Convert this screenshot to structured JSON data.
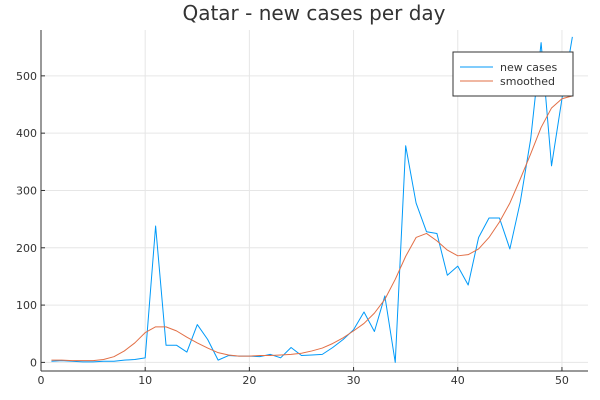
{
  "chart_data": {
    "type": "line",
    "title": "Qatar - new cases per day",
    "xlabel": "",
    "ylabel": "",
    "xlim": [
      0,
      52.5
    ],
    "ylim": [
      -15,
      580
    ],
    "xticks": [
      0,
      10,
      20,
      30,
      40,
      50
    ],
    "yticks": [
      0,
      100,
      200,
      300,
      400,
      500
    ],
    "grid": true,
    "legend_position": "top-right",
    "series": [
      {
        "name": "new cases",
        "color": "#009af9",
        "x": [
          1,
          2,
          3,
          4,
          5,
          6,
          7,
          8,
          9,
          10,
          11,
          12,
          13,
          14,
          15,
          16,
          17,
          18,
          19,
          20,
          21,
          22,
          23,
          24,
          25,
          26,
          27,
          28,
          29,
          30,
          31,
          32,
          33,
          34,
          35,
          36,
          37,
          38,
          39,
          40,
          41,
          42,
          43,
          44,
          45,
          46,
          47,
          48,
          49,
          50,
          51
        ],
        "y": [
          2,
          3,
          2,
          1,
          1,
          2,
          2,
          4,
          5,
          8,
          238,
          30,
          30,
          18,
          66,
          40,
          4,
          12,
          11,
          11,
          10,
          14,
          8,
          26,
          12,
          13,
          14,
          26,
          40,
          57,
          88,
          54,
          116,
          0,
          378,
          278,
          228,
          225,
          152,
          168,
          135,
          218,
          252,
          252,
          198,
          280,
          390,
          558,
          343,
          460,
          568
        ]
      },
      {
        "name": "smoothed",
        "color": "#e26f46",
        "x": [
          1,
          2,
          3,
          4,
          5,
          6,
          7,
          8,
          9,
          10,
          11,
          12,
          13,
          14,
          15,
          16,
          17,
          18,
          19,
          20,
          21,
          22,
          23,
          24,
          25,
          26,
          27,
          28,
          29,
          30,
          31,
          32,
          33,
          34,
          35,
          36,
          37,
          38,
          39,
          40,
          41,
          42,
          43,
          44,
          45,
          46,
          47,
          48,
          49,
          50,
          51
        ],
        "y": [
          4,
          4,
          3,
          3,
          3,
          5,
          10,
          20,
          34,
          52,
          62,
          62,
          55,
          44,
          34,
          25,
          17,
          13,
          11,
          11,
          12,
          12,
          13,
          14,
          16,
          20,
          25,
          33,
          43,
          55,
          68,
          86,
          110,
          145,
          185,
          218,
          225,
          212,
          196,
          186,
          188,
          198,
          218,
          245,
          278,
          320,
          364,
          410,
          444,
          460,
          465
        ]
      }
    ]
  }
}
